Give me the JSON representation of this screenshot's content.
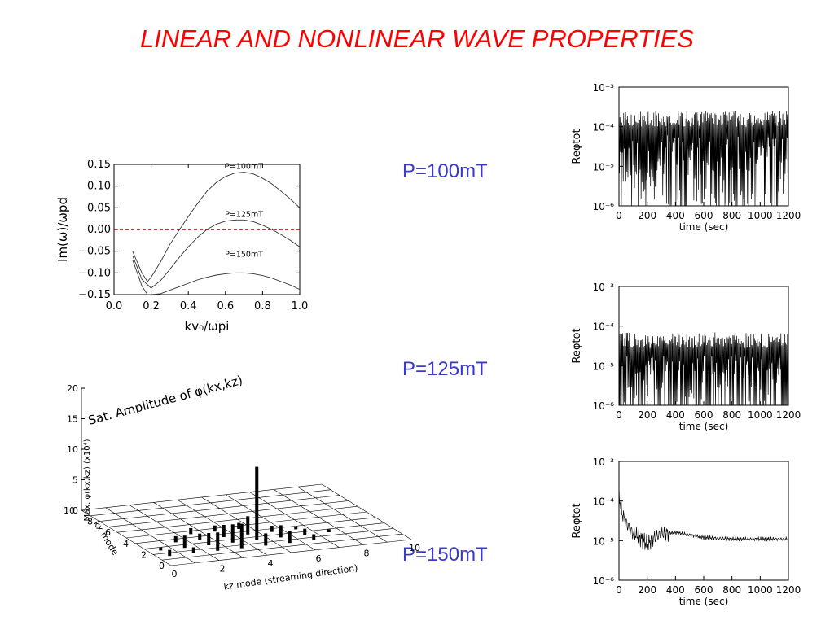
{
  "slide": {
    "title": "LINEAR AND NONLINEAR WAVE PROPERTIES",
    "labels": [
      "P=100mT",
      "P=125mT",
      "P=150mT"
    ]
  },
  "colors": {
    "title": "#ff0000",
    "label": "#3a3acc",
    "zero_line": "#8b0000"
  },
  "chart_data": [
    {
      "type": "line",
      "title": "",
      "xlabel": "kv₀/ωpi",
      "ylabel": "Im(ω)/ωpd",
      "xlim": [
        0.0,
        1.0
      ],
      "ylim": [
        -0.15,
        0.15
      ],
      "xticks": [
        "0.0",
        "0.2",
        "0.4",
        "0.6",
        "0.8",
        "1.0"
      ],
      "yticks": [
        "0.15",
        "0.10",
        "0.05",
        "0.00",
        "−0.05",
        "−0.10",
        "−0.15"
      ],
      "reference_line": {
        "y": 0.0,
        "style": "dashed"
      },
      "series": [
        {
          "name": "P=100mT",
          "x": [
            0.1,
            0.15,
            0.18,
            0.2,
            0.25,
            0.3,
            0.35,
            0.4,
            0.45,
            0.5,
            0.55,
            0.6,
            0.65,
            0.7,
            0.75,
            0.8,
            0.85,
            0.9,
            0.95,
            1.0
          ],
          "y": [
            -0.05,
            -0.1,
            -0.12,
            -0.11,
            -0.075,
            -0.035,
            -0.002,
            0.03,
            0.06,
            0.088,
            0.108,
            0.122,
            0.13,
            0.132,
            0.128,
            0.118,
            0.105,
            0.088,
            0.07,
            0.05
          ]
        },
        {
          "name": "P=125mT",
          "x": [
            0.1,
            0.15,
            0.2,
            0.25,
            0.3,
            0.35,
            0.4,
            0.45,
            0.5,
            0.55,
            0.6,
            0.65,
            0.7,
            0.75,
            0.8,
            0.85,
            0.9,
            0.95,
            1.0
          ],
          "y": [
            -0.06,
            -0.115,
            -0.135,
            -0.118,
            -0.092,
            -0.065,
            -0.04,
            -0.018,
            0.0,
            0.012,
            0.019,
            0.022,
            0.022,
            0.018,
            0.01,
            0.0,
            -0.012,
            -0.025,
            -0.04
          ]
        },
        {
          "name": "P=150mT",
          "x": [
            0.1,
            0.15,
            0.18,
            0.2,
            0.25,
            0.3,
            0.35,
            0.4,
            0.45,
            0.5,
            0.55,
            0.6,
            0.65,
            0.7,
            0.75,
            0.8,
            0.85,
            0.9,
            0.95,
            1.0
          ],
          "y": [
            -0.07,
            -0.13,
            -0.15,
            -0.15,
            -0.148,
            -0.14,
            -0.132,
            -0.124,
            -0.116,
            -0.11,
            -0.105,
            -0.102,
            -0.1,
            -0.1,
            -0.102,
            -0.106,
            -0.112,
            -0.12,
            -0.128,
            -0.138
          ]
        }
      ]
    },
    {
      "type": "bar",
      "title": "Sat. Amplitude of φ(kx,kz)",
      "zlabel": "Max. φ(kx,kz) (x10⁴)",
      "xlabel": "kz mode (streaming direction)",
      "ylabel": "kx mode",
      "zlim": [
        0,
        20
      ],
      "zticks": [
        "0",
        "5",
        "10",
        "15",
        "20"
      ],
      "xticks": [
        "0",
        "2",
        "4",
        "6",
        "8",
        "10"
      ],
      "yticks": [
        "0",
        "2",
        "4",
        "6",
        "8",
        "10"
      ],
      "bars": [
        {
          "kz": 4,
          "kx": 2,
          "z": 12
        },
        {
          "kz": 1,
          "kx": 1,
          "z": 1
        },
        {
          "kz": 1,
          "kx": 2,
          "z": 2
        },
        {
          "kz": 2,
          "kx": 1,
          "z": 3
        },
        {
          "kz": 2,
          "kx": 2,
          "z": 2
        },
        {
          "kz": 2,
          "kx": 3,
          "z": 1
        },
        {
          "kz": 3,
          "kx": 1,
          "z": 4
        },
        {
          "kz": 3,
          "kx": 2,
          "z": 3
        },
        {
          "kz": 3,
          "kx": 3,
          "z": 2
        },
        {
          "kz": 4,
          "kx": 1,
          "z": 2
        },
        {
          "kz": 4,
          "kx": 3,
          "z": 3
        },
        {
          "kz": 5,
          "kx": 1,
          "z": 2
        },
        {
          "kz": 5,
          "kx": 2,
          "z": 2
        },
        {
          "kz": 5,
          "kx": 3,
          "z": 1
        },
        {
          "kz": 6,
          "kx": 1,
          "z": 1
        },
        {
          "kz": 6,
          "kx": 2,
          "z": 1
        },
        {
          "kz": 2,
          "kx": 4,
          "z": 1
        },
        {
          "kz": 3,
          "kx": 4,
          "z": 1
        },
        {
          "kz": 1,
          "kx": 3,
          "z": 1
        },
        {
          "kz": 7,
          "kx": 2,
          "z": 0.5
        },
        {
          "kz": 0,
          "kx": 1,
          "z": 1
        },
        {
          "kz": 0,
          "kx": 2,
          "z": 0.5
        },
        {
          "kz": 4,
          "kx": 4,
          "z": 1
        },
        {
          "kz": 6,
          "kx": 3,
          "z": 0.5
        }
      ]
    },
    {
      "type": "line",
      "title": "",
      "xlabel": "time (sec)",
      "ylabel": "Reφtot",
      "xlim": [
        0,
        1200
      ],
      "ylim": [
        1e-06,
        0.001
      ],
      "yscale": "log",
      "xticks": [
        "0",
        "200",
        "400",
        "600",
        "800",
        "1000",
        "1200"
      ],
      "yticks": [
        "10⁻³",
        "10⁻⁴",
        "10⁻⁵",
        "10⁻⁶"
      ],
      "series": [
        {
          "name": "",
          "x": [],
          "y": [],
          "range_y": [
            1e-06,
            0.00025
          ]
        }
      ]
    },
    {
      "type": "line",
      "title": "",
      "xlabel": "time (sec)",
      "ylabel": "Reφtot",
      "xlim": [
        0,
        1200
      ],
      "ylim": [
        1e-06,
        0.001
      ],
      "yscale": "log",
      "xticks": [
        "0",
        "200",
        "400",
        "600",
        "800",
        "1000",
        "1200"
      ],
      "yticks": [
        "10⁻³",
        "10⁻⁴",
        "10⁻⁵",
        "10⁻⁶"
      ],
      "series": [
        {
          "name": "",
          "x": [],
          "y": [],
          "range_y": [
            1e-06,
            7e-05
          ]
        }
      ]
    },
    {
      "type": "line",
      "title": "",
      "xlabel": "time (sec)",
      "ylabel": "Reφtot",
      "xlim": [
        0,
        1200
      ],
      "ylim": [
        1e-06,
        0.001
      ],
      "yscale": "log",
      "xticks": [
        "0",
        "200",
        "400",
        "600",
        "800",
        "1000",
        "1200"
      ],
      "yticks": [
        "10⁻³",
        "10⁻⁴",
        "10⁻⁵",
        "10⁻⁶"
      ],
      "series": [
        {
          "name": "",
          "x": [
            0,
            20,
            60,
            100,
            150,
            200,
            250,
            300,
            400,
            500,
            600,
            800,
            1000,
            1200
          ],
          "y": [
            0.00015,
            5e-05,
            2.5e-05,
            1.5e-05,
            1.2e-05,
            8e-06,
            1.2e-05,
            1.5e-05,
            1.6e-05,
            1.4e-05,
            1.2e-05,
            1.1e-05,
            1.1e-05,
            1.1e-05
          ]
        }
      ]
    }
  ]
}
